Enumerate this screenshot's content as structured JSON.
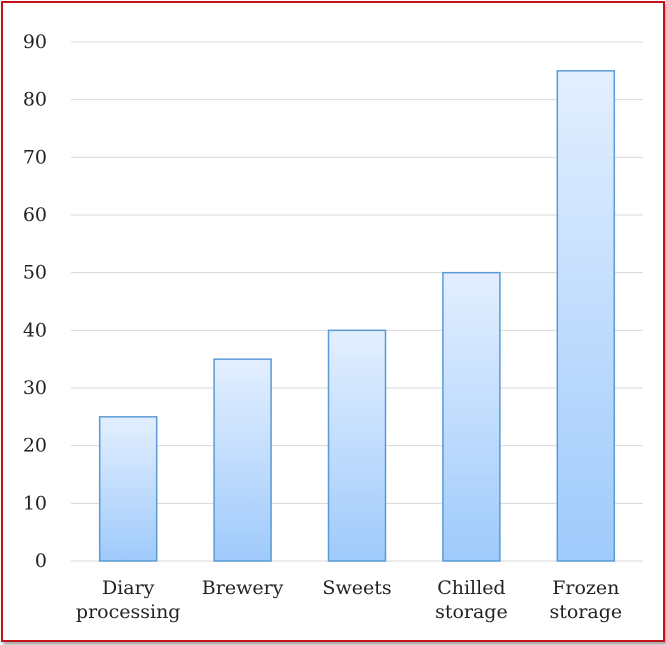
{
  "chart_data": {
    "type": "bar",
    "title": "",
    "xlabel": "",
    "ylabel": "",
    "categories": [
      [
        "Diary",
        "processing"
      ],
      [
        "Brewery"
      ],
      [
        "Sweets"
      ],
      [
        "Chilled",
        "storage"
      ],
      [
        "Frozen",
        "storage"
      ]
    ],
    "values": [
      25,
      35,
      40,
      50,
      85
    ],
    "ylim": [
      0,
      90
    ],
    "yticks": [
      "0",
      "10",
      "20",
      "30",
      "40",
      "50",
      "60",
      "70",
      "80",
      "90"
    ],
    "grid": true,
    "legend": "none",
    "colors": {
      "bar_top": "#e3efff",
      "bar_bottom": "#9fcafb",
      "bar_stroke": "#5b9bd5",
      "grid": "#d9d9d9",
      "border": "#c0131b"
    }
  }
}
